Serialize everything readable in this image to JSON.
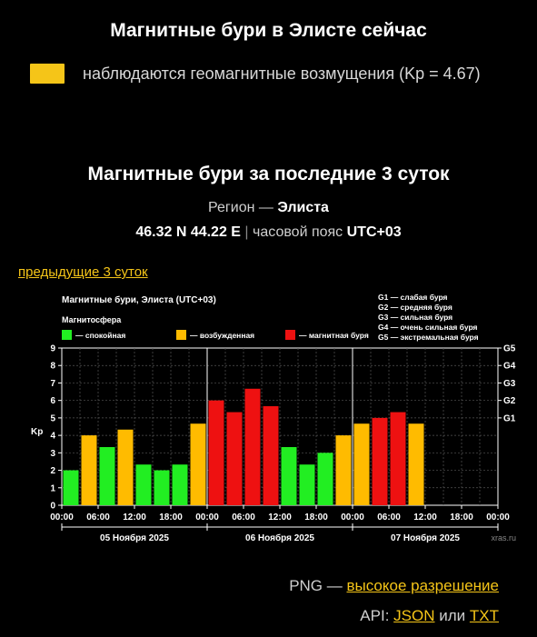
{
  "header": {
    "title": "Магнитные бури в Элисте сейчас",
    "status_text": "наблюдаются геомагнитные возмущения (Kp = 4.67)",
    "status_color": "#f5c518"
  },
  "section": {
    "title": "Магнитные бури за последние 3 суток",
    "region_label": "Регион —",
    "region_name": "Элиста",
    "coords": "46.32 N 44.22 E",
    "tz_label": "часовой пояс",
    "tz_value": "UTC+03",
    "prev_link": "предыдущие 3 суток"
  },
  "colors": {
    "quiet": "#22ee22",
    "excited": "#ffbb00",
    "storm": "#ee1111"
  },
  "chart_data": {
    "type": "bar",
    "title": "Магнитные бури, Элиста (UTC+03)",
    "legend_title": "Магнитосфера",
    "legend": [
      {
        "name": "— спокойная",
        "color": "#22ee22"
      },
      {
        "name": "— возбужденная",
        "color": "#ffbb00"
      },
      {
        "name": "— магнитная буря",
        "color": "#ee1111"
      }
    ],
    "g_legend": [
      "G1 — слабая буря",
      "G2 — средняя буря",
      "G3 — сильная буря",
      "G4 — очень сильная буря",
      "G5 — экстремальная буря"
    ],
    "ylabel": "Kp",
    "ylim": [
      0,
      9
    ],
    "yticks": [
      "0",
      "1",
      "2",
      "3",
      "4",
      "5",
      "6",
      "7",
      "8",
      "9"
    ],
    "g_ticks": [
      {
        "label": "G1",
        "value": 5
      },
      {
        "label": "G2",
        "value": 6
      },
      {
        "label": "G3",
        "value": 7
      },
      {
        "label": "G4",
        "value": 8
      },
      {
        "label": "G5",
        "value": 9
      }
    ],
    "xticks": [
      "00:00",
      "06:00",
      "12:00",
      "18:00",
      "00:00",
      "06:00",
      "12:00",
      "18:00",
      "00:00",
      "06:00",
      "12:00",
      "18:00",
      "00:00"
    ],
    "days": [
      "05 Ноября 2025",
      "06 Ноября 2025",
      "07 Ноября 2025"
    ],
    "values": [
      2.0,
      4.0,
      3.33,
      4.33,
      2.33,
      2.0,
      2.33,
      4.67,
      6.0,
      5.33,
      6.67,
      5.67,
      3.33,
      2.33,
      3.0,
      4.0,
      4.67,
      5.0,
      5.33,
      4.67
    ],
    "watermark": "xras.ru",
    "grid": true
  },
  "footer": {
    "png_label": "PNG —",
    "png_link": "высокое разрешение",
    "api_label": "API:",
    "json_link": "JSON",
    "or_label": "или",
    "txt_link": "TXT"
  }
}
